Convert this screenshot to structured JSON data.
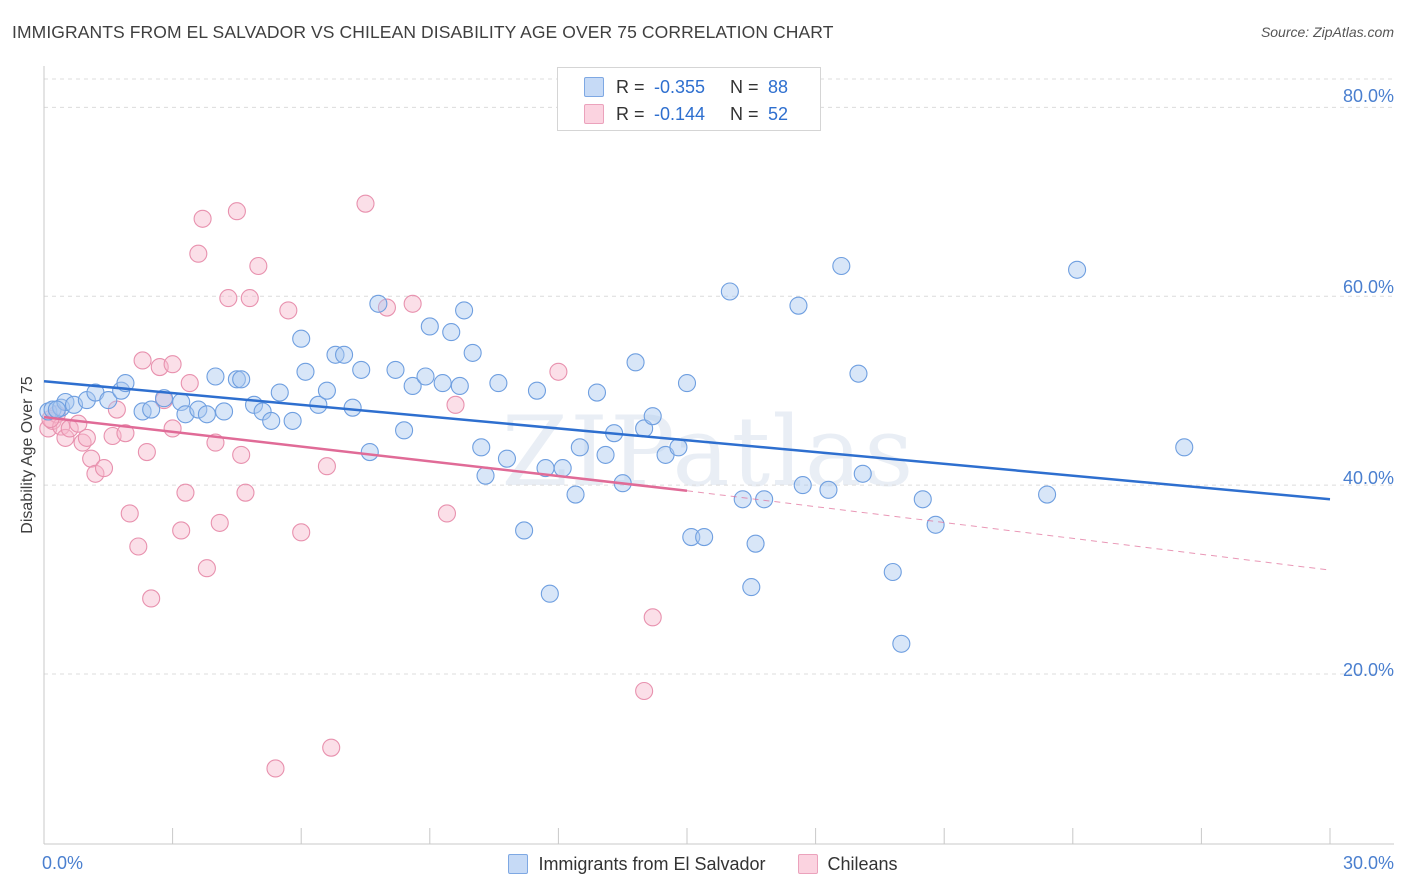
{
  "title": "IMMIGRANTS FROM EL SALVADOR VS CHILEAN DISABILITY AGE OVER 75 CORRELATION CHART",
  "source": "Source: ZipAtlas.com",
  "legend": {
    "rows": [
      {
        "r_label": "R =",
        "r_value": "-0.355",
        "n_label": "N =",
        "n_value": "88"
      },
      {
        "r_label": "R =",
        "r_value": "-0.144",
        "n_label": "N =",
        "n_value": "52"
      }
    ]
  },
  "colors": {
    "blue_fill": "#a9c7ef",
    "blue_stroke": "#6f9fe0",
    "blue_line": "#2e6fcf",
    "pink_fill": "#f6b8cc",
    "pink_stroke": "#e891ae",
    "pink_line": "#e06b97",
    "value_text": "#2e6fcf",
    "grid": "#dcdcdc"
  },
  "watermark": "ZIPatlas",
  "chart_data": {
    "type": "scatter",
    "title": "IMMIGRANTS FROM EL SALVADOR VS CHILEAN DISABILITY AGE OVER 75 CORRELATION CHART",
    "xlabel": "",
    "ylabel": "Disability Age Over 75",
    "xlim": [
      0,
      30
    ],
    "ylim": [
      2,
      83
    ],
    "x_tick_labels": [
      "0.0%",
      "30.0%"
    ],
    "y_ticks": [
      20,
      40,
      60,
      80
    ],
    "y_tick_labels": [
      "20.0%",
      "40.0%",
      "60.0%",
      "80.0%"
    ],
    "grid": "horizontal dashed",
    "legend_position": "top-center",
    "series": [
      {
        "name": "Immigrants from El Salvador",
        "color": "#a9c7ef",
        "r": -0.355,
        "n": 88,
        "trend": {
          "x": [
            0,
            30
          ],
          "y": [
            51.0,
            38.5
          ]
        },
        "points": [
          [
            0.1,
            47.8
          ],
          [
            0.2,
            48.0
          ],
          [
            0.4,
            48.2
          ],
          [
            0.5,
            48.8
          ],
          [
            0.7,
            48.5
          ],
          [
            1.0,
            49.0
          ],
          [
            1.2,
            49.8
          ],
          [
            1.5,
            49.0
          ],
          [
            1.8,
            50.0
          ],
          [
            1.9,
            50.8
          ],
          [
            2.3,
            47.8
          ],
          [
            2.5,
            48.0
          ],
          [
            2.8,
            49.2
          ],
          [
            3.2,
            48.8
          ],
          [
            3.3,
            47.5
          ],
          [
            3.6,
            48.0
          ],
          [
            3.8,
            47.5
          ],
          [
            4.0,
            51.5
          ],
          [
            4.2,
            47.8
          ],
          [
            4.5,
            51.2
          ],
          [
            4.6,
            51.2
          ],
          [
            4.9,
            48.5
          ],
          [
            5.1,
            47.8
          ],
          [
            5.3,
            46.8
          ],
          [
            5.5,
            49.8
          ],
          [
            5.8,
            46.8
          ],
          [
            6.0,
            55.5
          ],
          [
            6.1,
            52.0
          ],
          [
            6.4,
            48.5
          ],
          [
            6.6,
            50.0
          ],
          [
            6.8,
            53.8
          ],
          [
            7.0,
            53.8
          ],
          [
            7.2,
            48.2
          ],
          [
            7.4,
            52.2
          ],
          [
            7.6,
            43.5
          ],
          [
            7.8,
            59.2
          ],
          [
            8.2,
            52.2
          ],
          [
            8.4,
            45.8
          ],
          [
            8.6,
            50.5
          ],
          [
            8.9,
            51.5
          ],
          [
            9.0,
            56.8
          ],
          [
            9.3,
            50.8
          ],
          [
            9.5,
            56.2
          ],
          [
            9.7,
            50.5
          ],
          [
            9.8,
            58.5
          ],
          [
            10.0,
            54.0
          ],
          [
            10.2,
            44.0
          ],
          [
            10.3,
            41.0
          ],
          [
            10.6,
            50.8
          ],
          [
            10.8,
            42.8
          ],
          [
            11.2,
            35.2
          ],
          [
            11.5,
            50.0
          ],
          [
            11.7,
            41.8
          ],
          [
            11.8,
            28.5
          ],
          [
            12.1,
            41.8
          ],
          [
            12.4,
            39.0
          ],
          [
            12.5,
            44.0
          ],
          [
            12.9,
            49.8
          ],
          [
            13.1,
            43.2
          ],
          [
            13.3,
            45.5
          ],
          [
            13.5,
            40.2
          ],
          [
            13.8,
            53.0
          ],
          [
            14.0,
            46.0
          ],
          [
            14.2,
            47.3
          ],
          [
            14.5,
            43.2
          ],
          [
            14.8,
            44.0
          ],
          [
            15.0,
            50.8
          ],
          [
            15.1,
            34.5
          ],
          [
            15.4,
            34.5
          ],
          [
            16.0,
            60.5
          ],
          [
            16.3,
            38.5
          ],
          [
            16.5,
            29.2
          ],
          [
            16.6,
            33.8
          ],
          [
            16.8,
            38.5
          ],
          [
            17.6,
            59.0
          ],
          [
            17.7,
            40.0
          ],
          [
            18.3,
            39.5
          ],
          [
            18.6,
            63.2
          ],
          [
            19.0,
            51.8
          ],
          [
            19.1,
            41.2
          ],
          [
            19.8,
            30.8
          ],
          [
            20.0,
            23.2
          ],
          [
            20.5,
            38.5
          ],
          [
            20.8,
            35.8
          ],
          [
            23.4,
            39.0
          ],
          [
            24.1,
            62.8
          ],
          [
            26.6,
            44.0
          ],
          [
            0.3,
            48.0
          ]
        ]
      },
      {
        "name": "Chileans",
        "color": "#f6b8cc",
        "r": -0.144,
        "n": 52,
        "trend": {
          "x": [
            0,
            15
          ],
          "y": [
            47.2,
            39.4
          ]
        },
        "trend_dashed": {
          "x": [
            15,
            30
          ],
          "y": [
            39.4,
            31.0
          ]
        },
        "points": [
          [
            0.1,
            46.0
          ],
          [
            0.2,
            46.8
          ],
          [
            0.3,
            47.5
          ],
          [
            0.4,
            46.2
          ],
          [
            0.5,
            45.0
          ],
          [
            0.6,
            46.0
          ],
          [
            0.8,
            46.5
          ],
          [
            0.9,
            44.5
          ],
          [
            1.0,
            45.0
          ],
          [
            1.1,
            42.8
          ],
          [
            1.2,
            41.2
          ],
          [
            1.4,
            41.8
          ],
          [
            1.6,
            45.2
          ],
          [
            1.7,
            48.0
          ],
          [
            1.9,
            45.5
          ],
          [
            2.0,
            37.0
          ],
          [
            2.2,
            33.5
          ],
          [
            2.3,
            53.2
          ],
          [
            2.4,
            43.5
          ],
          [
            2.5,
            28.0
          ],
          [
            2.7,
            52.5
          ],
          [
            2.8,
            49.0
          ],
          [
            3.0,
            46.0
          ],
          [
            3.0,
            52.8
          ],
          [
            3.2,
            35.2
          ],
          [
            3.3,
            39.2
          ],
          [
            3.4,
            50.8
          ],
          [
            3.6,
            64.5
          ],
          [
            3.7,
            68.2
          ],
          [
            3.8,
            31.2
          ],
          [
            4.0,
            44.5
          ],
          [
            4.1,
            36.0
          ],
          [
            4.3,
            59.8
          ],
          [
            4.5,
            69.0
          ],
          [
            4.6,
            43.2
          ],
          [
            4.7,
            39.2
          ],
          [
            4.8,
            59.8
          ],
          [
            5.0,
            63.2
          ],
          [
            5.4,
            10.0
          ],
          [
            5.7,
            58.5
          ],
          [
            6.0,
            35.0
          ],
          [
            6.6,
            42.0
          ],
          [
            6.7,
            12.2
          ],
          [
            7.5,
            69.8
          ],
          [
            8.0,
            58.8
          ],
          [
            8.6,
            59.2
          ],
          [
            9.4,
            37.0
          ],
          [
            9.6,
            48.5
          ],
          [
            12.0,
            52.0
          ],
          [
            14.2,
            26.0
          ],
          [
            14.0,
            18.2
          ],
          [
            0.15,
            47.0
          ]
        ]
      }
    ]
  }
}
